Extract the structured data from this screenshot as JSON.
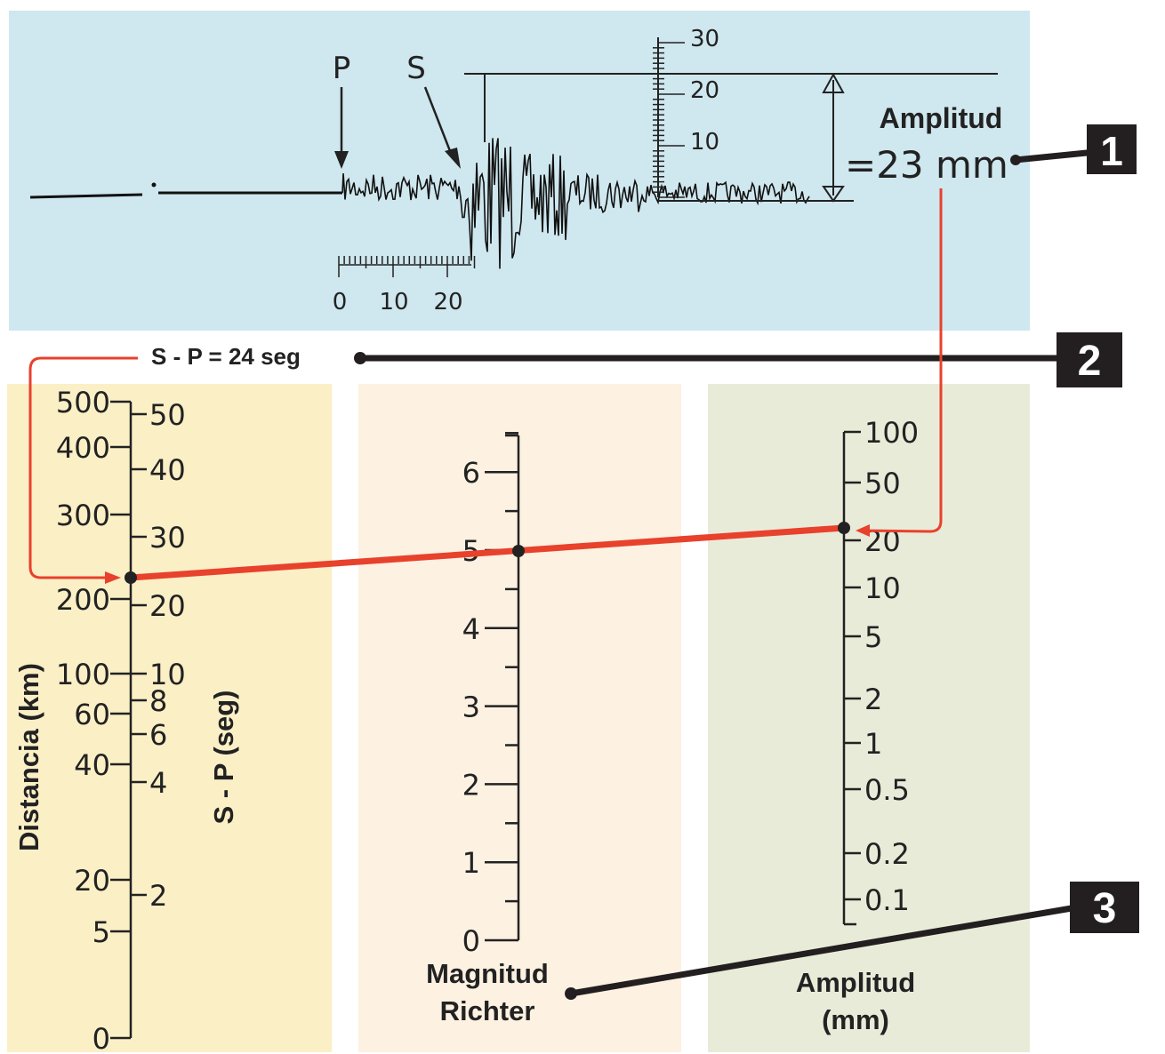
{
  "seismogram": {
    "p_label": "P",
    "s_label": "S",
    "amplitude_title": "Amplitud",
    "amplitude_value": "=23 mm",
    "amplitude_ruler_ticks": [
      "30",
      "20",
      "10"
    ],
    "time_ruler_ticks": [
      "0",
      "10",
      "20"
    ]
  },
  "sp_reading": "S - P = 24 seg",
  "callouts": [
    "1",
    "2",
    "3"
  ],
  "distance_scale": {
    "axis_label": "Distancia (km)",
    "ticks": [
      "500",
      "400",
      "300",
      "200",
      "100",
      "60",
      "40",
      "20",
      "5",
      "0"
    ]
  },
  "sp_scale": {
    "axis_label": "S - P (seg)",
    "ticks": [
      "50",
      "40",
      "30",
      "20",
      "10",
      "8",
      "6",
      "4",
      "2"
    ]
  },
  "magnitude_scale": {
    "axis_label_line1": "Magnitud",
    "axis_label_line2": "Richter",
    "ticks": [
      "6",
      "5",
      "4",
      "3",
      "2",
      "1",
      "0"
    ]
  },
  "amplitude_scale": {
    "axis_label_line1": "Amplitud",
    "axis_label_line2": "(mm)",
    "ticks": [
      "100",
      "50",
      "20",
      "10",
      "5",
      "2",
      "1",
      "0.5",
      "0.2",
      "0.1"
    ]
  },
  "example_reading": {
    "sp_seconds": 24,
    "amplitude_mm": 23,
    "magnitude": 5
  },
  "colors": {
    "seismogram_bg": "#cfe7ee",
    "distance_bg": "#fbefc6",
    "magnitude_bg": "#fdf1e1",
    "amplitude_bg": "#e9ebd9",
    "connector": "#e8412c",
    "callout_box": "#231f20"
  }
}
